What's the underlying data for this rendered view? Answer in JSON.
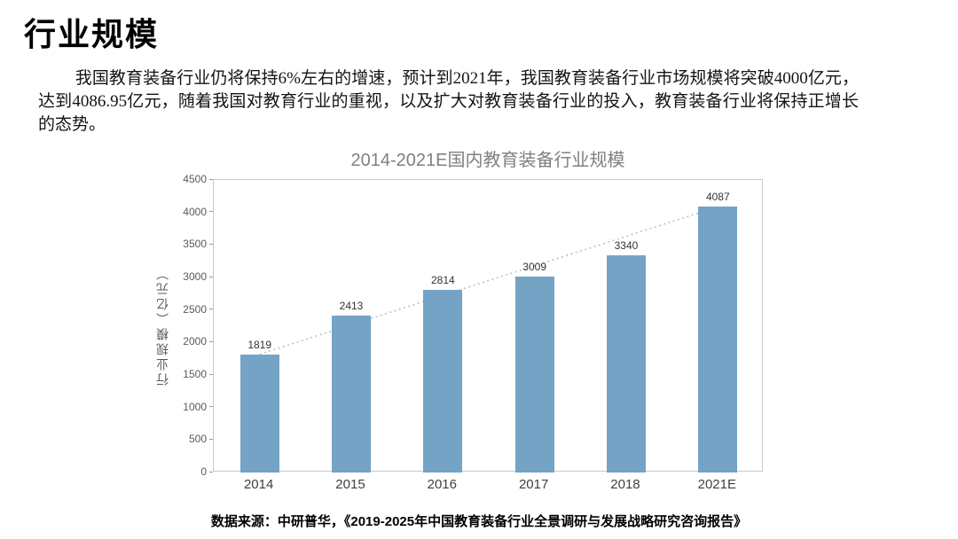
{
  "page": {
    "title": "行业规模",
    "paragraph": "我国教育装备行业仍将保持6%左右的增速，预计到2021年，我国教育装备行业市场规模将突破4000亿元，达到4086.95亿元，随着我国对教育行业的重视，以及扩大对教育装备行业的投入，教育装备行业将保持正增长的态势。",
    "source": "数据来源：中研普华，《2019-2025年中国教育装备行业全景调研与发展战略研究咨询报告》"
  },
  "chart_data": {
    "type": "bar",
    "title": "2014-2021E国内教育装备行业规模",
    "categories": [
      "2014",
      "2015",
      "2016",
      "2017",
      "2018",
      "2021E"
    ],
    "values": [
      1819,
      2413,
      2814,
      3009,
      3340,
      4087
    ],
    "ylabel": "行业规模（亿元）",
    "ylim": [
      0,
      4500
    ],
    "yticks": [
      0,
      500,
      1000,
      1500,
      2000,
      2500,
      3000,
      3500,
      4000,
      4500
    ],
    "grid": false,
    "legend": false,
    "bar_color": "#74a3c6",
    "trendline": true,
    "trendline_style": "dotted",
    "trendline_color": "#a9c6d8",
    "title_color": "#808080",
    "axis_text_color": "#595959"
  }
}
